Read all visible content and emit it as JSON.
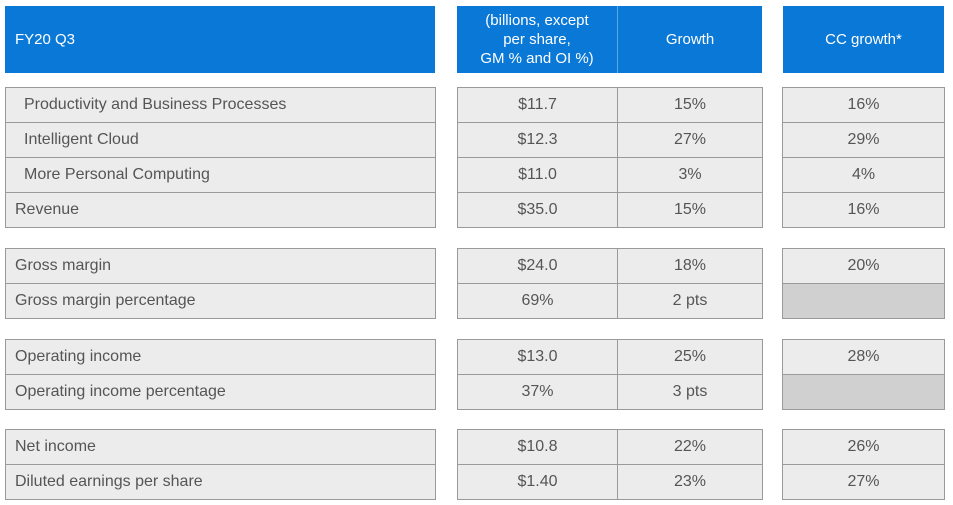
{
  "colors": {
    "header_bg": "#0a78d7",
    "cell_bg": "#ececec",
    "empty_cell_bg": "#d0d0d0",
    "border": "#9a9a9a",
    "text": "#555555"
  },
  "chart_data": {
    "type": "table",
    "columns": [
      "FY20 Q3",
      "(billions, except per share, GM % and OI %)",
      "Growth",
      "CC growth*"
    ],
    "header": {
      "period": "FY20 Q3",
      "units_lines": [
        "(billions, except",
        "per share,",
        "GM % and OI %)"
      ],
      "growth": "Growth",
      "cc_growth": "CC growth*"
    },
    "groups": [
      {
        "rows": [
          {
            "label": "Productivity and Business Processes",
            "indent": true,
            "value": "$11.7",
            "growth": "15%",
            "cc_growth": "16%"
          },
          {
            "label": "Intelligent Cloud",
            "indent": true,
            "value": "$12.3",
            "growth": "27%",
            "cc_growth": "29%"
          },
          {
            "label": "More Personal Computing",
            "indent": true,
            "value": "$11.0",
            "growth": "3%",
            "cc_growth": "4%"
          },
          {
            "label": "Revenue",
            "indent": false,
            "value": "$35.0",
            "growth": "15%",
            "cc_growth": "16%"
          }
        ]
      },
      {
        "rows": [
          {
            "label": "Gross margin",
            "indent": false,
            "value": "$24.0",
            "growth": "18%",
            "cc_growth": "20%"
          },
          {
            "label": "Gross margin percentage",
            "indent": false,
            "value": "69%",
            "growth": "2 pts",
            "cc_growth": ""
          }
        ]
      },
      {
        "rows": [
          {
            "label": "Operating income",
            "indent": false,
            "value": "$13.0",
            "growth": "25%",
            "cc_growth": "28%"
          },
          {
            "label": "Operating income percentage",
            "indent": false,
            "value": "37%",
            "growth": "3 pts",
            "cc_growth": ""
          }
        ]
      },
      {
        "rows": [
          {
            "label": "Net income",
            "indent": false,
            "value": "$10.8",
            "growth": "22%",
            "cc_growth": "26%"
          },
          {
            "label": "Diluted earnings per share",
            "indent": false,
            "value": "$1.40",
            "growth": "23%",
            "cc_growth": "27%"
          }
        ]
      }
    ]
  }
}
